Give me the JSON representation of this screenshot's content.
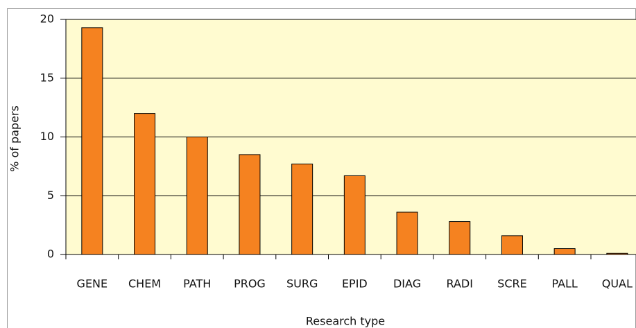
{
  "chart_data": {
    "type": "bar",
    "x_label": "Research type",
    "y_label": "% of papers",
    "categories": [
      "GENE",
      "CHEM",
      "PATH",
      "PROG",
      "SURG",
      "EPID",
      "DIAG",
      "RADI",
      "SCRE",
      "PALL",
      "QUAL"
    ],
    "values": [
      19.3,
      12.0,
      10.0,
      8.5,
      7.7,
      6.7,
      3.6,
      2.8,
      1.6,
      0.5,
      0.1
    ],
    "color": "#f58220",
    "ylim": [
      0,
      20
    ],
    "yticks": [
      0,
      5,
      10,
      15,
      20
    ],
    "grid": true
  }
}
